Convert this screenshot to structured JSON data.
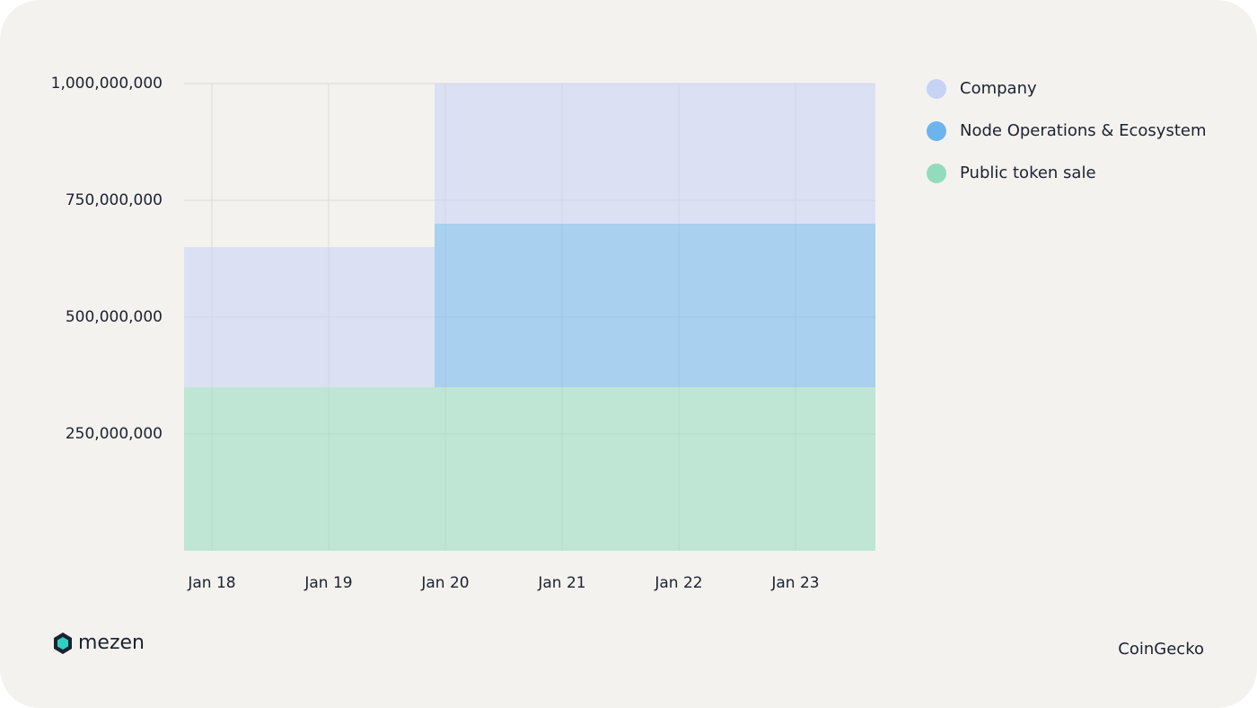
{
  "chart_data": {
    "type": "stacked-area",
    "categories": [
      "Jan 18",
      "Jan 19",
      "Jan 20",
      "Jan 21",
      "Jan 22",
      "Jan 23"
    ],
    "series": [
      {
        "name": "Public token sale",
        "color": "#93dbbd",
        "values": [
          350000000,
          350000000,
          350000000,
          350000000,
          350000000,
          350000000
        ]
      },
      {
        "name": "Node Operations & Ecosystem",
        "color": "#6cb4ee",
        "values": [
          0,
          0,
          350000000,
          350000000,
          350000000,
          350000000
        ]
      },
      {
        "name": "Company",
        "color": "#c6d3f5",
        "values": [
          300000000,
          300000000,
          300000000,
          300000000,
          300000000,
          300000000
        ]
      }
    ],
    "ylim": [
      0,
      1000000000
    ],
    "yticks": [
      {
        "value": 250000000,
        "label": "250,000,000"
      },
      {
        "value": 500000000,
        "label": "500,000,000"
      },
      {
        "value": 750000000,
        "label": "750,000,000"
      },
      {
        "value": 1000000000,
        "label": "1,000,000,000"
      }
    ],
    "grid": true,
    "legend": "right",
    "logo_text": "mezen",
    "source": "CoinGecko"
  }
}
